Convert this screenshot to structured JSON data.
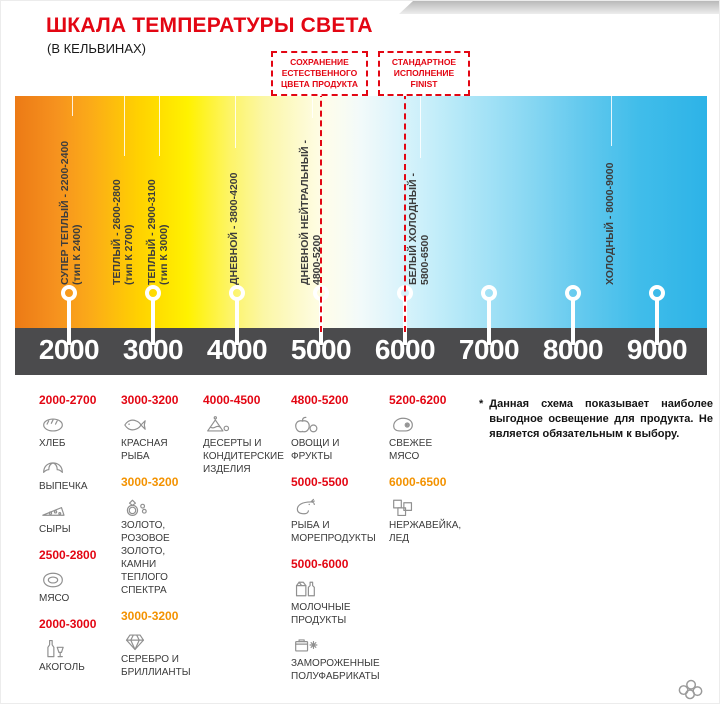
{
  "header": {
    "title": "ШКАЛА ТЕМПЕРАТУРЫ СВЕТА",
    "subtitle": "(В КЕЛЬВИНАХ)"
  },
  "callouts": {
    "preserve_color": "СОХРАНЕНИЕ ЕСТЕСТВЕННОГО ЦВЕТА ПРОДУКТА",
    "standard_finist": "СТАНДАРТНОЕ ИСПОЛНЕНИЕ FINIST"
  },
  "scale": {
    "unit": "K",
    "ticks": [
      "2000",
      "3000",
      "4000",
      "5000",
      "6000",
      "7000",
      "8000",
      "9000"
    ],
    "zones": [
      {
        "label": "СУПЕР ТЕПЛЫЙ - 2200-2400",
        "sub": "(тип К 2400)"
      },
      {
        "label": "ТЕПЛЫЙ - 2600-2800",
        "sub": "(тип К 2700)"
      },
      {
        "label": "ТЕПЛЫЙ - 2900-3100",
        "sub": "(тип К 3000)"
      },
      {
        "label": "ДНЕВНОЙ - 3800-4200",
        "sub": ""
      },
      {
        "label": "ДНЕВНОЙ НЕЙТРАЛЬНЫЙ -",
        "sub": "4800-5200"
      },
      {
        "label": "БЕЛЫЙ ХОЛОДНЫЙ -",
        "sub": "5800-6500"
      },
      {
        "label": "ХОЛОДНЫЙ - 8000-9000",
        "sub": ""
      }
    ],
    "dashed_marks": [
      "5000",
      "6000"
    ]
  },
  "colors": {
    "accent_red": "#e30613",
    "accent_orange": "#f39200",
    "axis_bar": "#4b4b4d"
  },
  "products": {
    "columns": [
      {
        "groups": [
          {
            "range": "2000-2700",
            "tone": "red",
            "items": [
              {
                "icon": "bread-icon",
                "label": "ХЛЕБ"
              },
              {
                "icon": "pastry-icon",
                "label": "ВЫПЕЧКА"
              },
              {
                "icon": "cheese-icon",
                "label": "СЫРЫ"
              }
            ]
          },
          {
            "range": "2500-2800",
            "tone": "red",
            "items": [
              {
                "icon": "meat-icon",
                "label": "МЯСО"
              }
            ]
          },
          {
            "range": "2000-3000",
            "tone": "red",
            "items": [
              {
                "icon": "alcohol-icon",
                "label": "АКОГОЛЬ"
              }
            ]
          }
        ]
      },
      {
        "groups": [
          {
            "range": "3000-3200",
            "tone": "red",
            "items": [
              {
                "icon": "fish-icon",
                "label": "КРАСНАЯ\nРЫБА"
              }
            ]
          },
          {
            "range": "3000-3200",
            "tone": "orange",
            "items": [
              {
                "icon": "gold-icon",
                "label": "ЗОЛОТО,\nРОЗОВОЕ ЗОЛОТО,\nКАМНИ ТЕПЛОГО\nСПЕКТРА"
              }
            ]
          },
          {
            "range": "3000-3200",
            "tone": "orange",
            "items": [
              {
                "icon": "diamond-icon",
                "label": "СЕРЕБРО И\nБРИЛЛИАНТЫ"
              }
            ]
          }
        ]
      },
      {
        "groups": [
          {
            "range": "4000-4500",
            "tone": "red",
            "items": [
              {
                "icon": "dessert-icon",
                "label": "ДЕСЕРТЫ И\nКОНДИТЕРСКИЕ\nИЗДЕЛИЯ"
              }
            ]
          }
        ]
      },
      {
        "groups": [
          {
            "range": "4800-5200",
            "tone": "red",
            "items": [
              {
                "icon": "fruits-icon",
                "label": "ОВОЩИ И\nФРУКТЫ"
              }
            ]
          },
          {
            "range": "5000-5500",
            "tone": "red",
            "items": [
              {
                "icon": "seafood-icon",
                "label": "РЫБА И\nМОРЕПРОДУКТЫ"
              }
            ]
          },
          {
            "range": "5000-6000",
            "tone": "red",
            "items": [
              {
                "icon": "dairy-icon",
                "label": "МОЛОЧНЫЕ ПРОДУКТЫ"
              },
              {
                "icon": "frozen-icon",
                "label": "ЗАМОРОЖЕННЫЕ\nПОЛУФАБРИКАТЫ"
              }
            ]
          }
        ]
      },
      {
        "groups": [
          {
            "range": "5200-6200",
            "tone": "red",
            "items": [
              {
                "icon": "fresh-meat-icon",
                "label": "СВЕЖЕЕ\nМЯСО"
              }
            ]
          },
          {
            "range": "6000-6500",
            "tone": "orange",
            "items": [
              {
                "icon": "ice-icon",
                "label": "НЕРЖАВЕЙКА,\nЛЕД"
              }
            ]
          }
        ]
      }
    ]
  },
  "note": {
    "mark": "*",
    "text": "Данная схема показывает наиболее выгодное освещение для продукта. Не является обязательным к выбору."
  }
}
